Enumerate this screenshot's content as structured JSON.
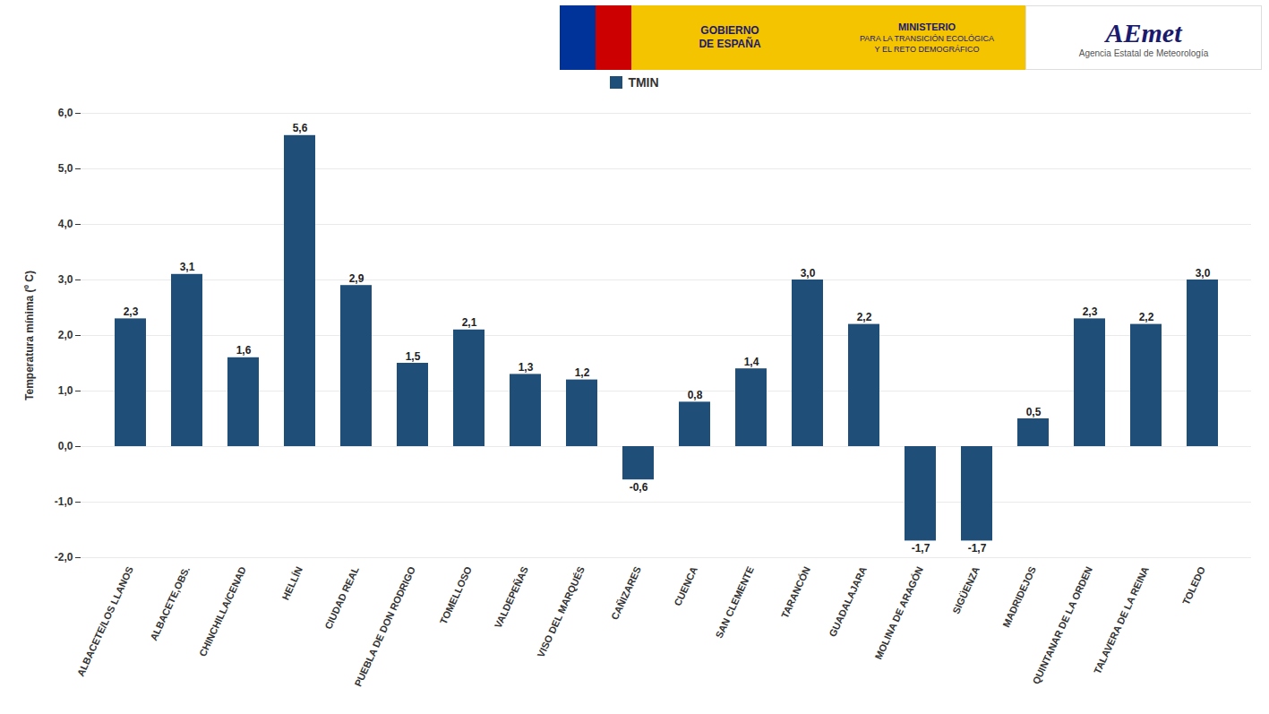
{
  "chart_data": {
    "type": "bar",
    "categories": [
      "ALBACETE/LOS LLANOS",
      "ALBACETE,OBS.",
      "CHINCHILLA/CENAD",
      "HELLÍN",
      "CIUDAD REAL",
      "PUEBLA DE DON RODRIGO",
      "TOMELLOSO",
      "VALDEPEÑAS",
      "VISO DEL MARQUÉS",
      "CAÑIZARES",
      "CUENCA",
      "SAN CLEMENTE",
      "TARANCÓN",
      "GUADALAJARA",
      "MOLINA DE ARAGÓN",
      "SIGÜENZA",
      "MADRIDEJOS",
      "QUINTANAR DE LA ORDEN",
      "TALAVERA DE LA REINA",
      "TOLEDO"
    ],
    "series": [
      {
        "name": "TMIN",
        "color": "#1F4E79",
        "values": [
          2.3,
          3.1,
          1.6,
          5.6,
          2.9,
          1.5,
          2.1,
          1.3,
          1.2,
          -0.6,
          0.8,
          1.4,
          3.0,
          2.2,
          -1.7,
          -1.7,
          0.5,
          2.3,
          2.2,
          3.0
        ],
        "value_labels": [
          "2,3",
          "3,1",
          "1,6",
          "5,6",
          "2,9",
          "1,5",
          "2,1",
          "1,3",
          "1,2",
          "-0,6",
          "0,8",
          "1,4",
          "3,0",
          "2,2",
          "-1,7",
          "-1,7",
          "0,5",
          "2,3",
          "2,2",
          "3,0"
        ]
      }
    ],
    "ylabel": "Temperatura mínima (º C)",
    "ylim": [
      -2.0,
      6.0
    ],
    "yticks": [
      {
        "value": -2.0,
        "label": "-2,0"
      },
      {
        "value": -1.0,
        "label": "-1,0"
      },
      {
        "value": 0.0,
        "label": "0,0"
      },
      {
        "value": 1.0,
        "label": "1,0"
      },
      {
        "value": 2.0,
        "label": "2,0"
      },
      {
        "value": 3.0,
        "label": "3,0"
      },
      {
        "value": 4.0,
        "label": "4,0"
      },
      {
        "value": 5.0,
        "label": "5,0"
      },
      {
        "value": 6.0,
        "label": "6,0"
      }
    ],
    "grid": true,
    "legend": "top",
    "data_labels": true,
    "annotations": [
      "GOBIERNO",
      "DE ESPAÑA",
      "MINISTERIO",
      "PARA LA TRANSICIÓN ECOLÓGICA",
      "Y EL RETO DEMOGRÁFICO",
      "AEmet",
      "Agencia Estatal de Meteorología"
    ]
  }
}
